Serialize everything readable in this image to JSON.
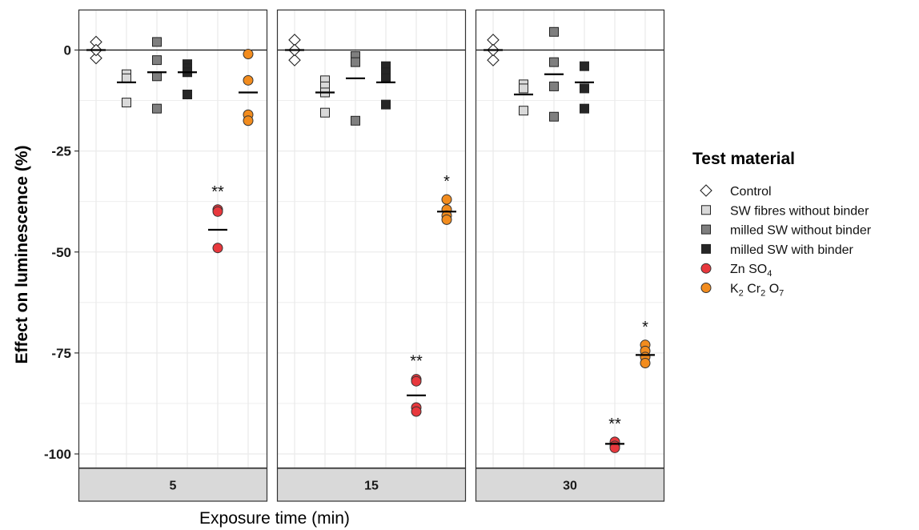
{
  "chart_data": {
    "type": "scatter",
    "xlabel": "Exposure time (min)",
    "ylabel": "Effect on luminescence (%)",
    "ylim": [
      -105,
      12
    ],
    "yticks": [
      0,
      -25,
      -50,
      -75,
      -100
    ],
    "ytick_labels": [
      "0",
      "-25",
      "-50",
      "-75",
      "-100"
    ],
    "reference_line_y": 0,
    "grid": true,
    "legend": {
      "title": "Test material",
      "position": "right",
      "items": [
        {
          "key": "control",
          "label": "Control",
          "sub": [],
          "shape": "diamond",
          "fill": "#ffffff"
        },
        {
          "key": "sw_fibres",
          "label": "SW fibres without binder",
          "sub": [],
          "shape": "square",
          "fill": "#d9d9d9"
        },
        {
          "key": "milled_no_binder",
          "label": "milled SW without binder",
          "sub": [],
          "shape": "square",
          "fill": "#7f7f7f"
        },
        {
          "key": "milled_binder",
          "label": "milled SW with binder",
          "sub": [],
          "shape": "square",
          "fill": "#262626"
        },
        {
          "key": "znso4",
          "label": "",
          "sub": [
            [
              "Zn SO",
              "4"
            ]
          ],
          "shape": "circle",
          "fill": "#e8383d"
        },
        {
          "key": "k2cr2o7",
          "label": "",
          "sub": [
            [
              "K",
              "2"
            ],
            [
              " Cr",
              "2"
            ],
            [
              " O",
              "7"
            ]
          ],
          "shape": "circle",
          "fill": "#f28c1e"
        }
      ]
    },
    "panels": [
      {
        "label": "5",
        "groups": [
          {
            "key": "control",
            "points": [
              2,
              -2,
              0
            ],
            "mean": 0,
            "sig": ""
          },
          {
            "key": "sw_fibres",
            "points": [
              -6,
              -7,
              -13
            ],
            "mean": -8,
            "sig": ""
          },
          {
            "key": "milled_no_binder",
            "points": [
              2,
              -2.5,
              -6.5,
              -14.5
            ],
            "mean": -5.5,
            "sig": ""
          },
          {
            "key": "milled_binder",
            "points": [
              -3.5,
              -4.5,
              -5.5,
              -11
            ],
            "mean": -5.5,
            "sig": ""
          },
          {
            "key": "znso4",
            "points": [
              -39.5,
              -40,
              -49
            ],
            "mean": -44.5,
            "sig": "**"
          },
          {
            "key": "k2cr2o7",
            "points": [
              -1,
              -7.5,
              -16,
              -17.5
            ],
            "mean": -10.5,
            "sig": ""
          }
        ]
      },
      {
        "label": "15",
        "groups": [
          {
            "key": "control",
            "points": [
              2.5,
              -2.5,
              0
            ],
            "mean": 0,
            "sig": ""
          },
          {
            "key": "sw_fibres",
            "points": [
              -7.5,
              -9,
              -10.5,
              -15.5
            ],
            "mean": -10.5,
            "sig": ""
          },
          {
            "key": "milled_no_binder",
            "points": [
              -1.5,
              -3,
              -17.5
            ],
            "mean": -7,
            "sig": ""
          },
          {
            "key": "milled_binder",
            "points": [
              -4,
              -5.5,
              -7,
              -13.5
            ],
            "mean": -8,
            "sig": ""
          },
          {
            "key": "znso4",
            "points": [
              -81.5,
              -82,
              -88.5,
              -89.5
            ],
            "mean": -85.5,
            "sig": "**"
          },
          {
            "key": "k2cr2o7",
            "points": [
              -37,
              -39.5,
              -41,
              -42
            ],
            "mean": -40,
            "sig": "*"
          }
        ]
      },
      {
        "label": "30",
        "groups": [
          {
            "key": "control",
            "points": [
              2.5,
              -2.5,
              0
            ],
            "mean": 0,
            "sig": ""
          },
          {
            "key": "sw_fibres",
            "points": [
              -8.5,
              -9.5,
              -15
            ],
            "mean": -11,
            "sig": ""
          },
          {
            "key": "milled_no_binder",
            "points": [
              4.5,
              -3,
              -9,
              -16.5
            ],
            "mean": -6,
            "sig": ""
          },
          {
            "key": "milled_binder",
            "points": [
              -4,
              -9.5,
              -14.5
            ],
            "mean": -8,
            "sig": ""
          },
          {
            "key": "znso4",
            "points": [
              -97,
              -98,
              -98.5
            ],
            "mean": -97.5,
            "sig": "**"
          },
          {
            "key": "k2cr2o7",
            "points": [
              -73,
              -74.5,
              -76,
              -77.5
            ],
            "mean": -75.5,
            "sig": "*"
          }
        ]
      }
    ]
  }
}
